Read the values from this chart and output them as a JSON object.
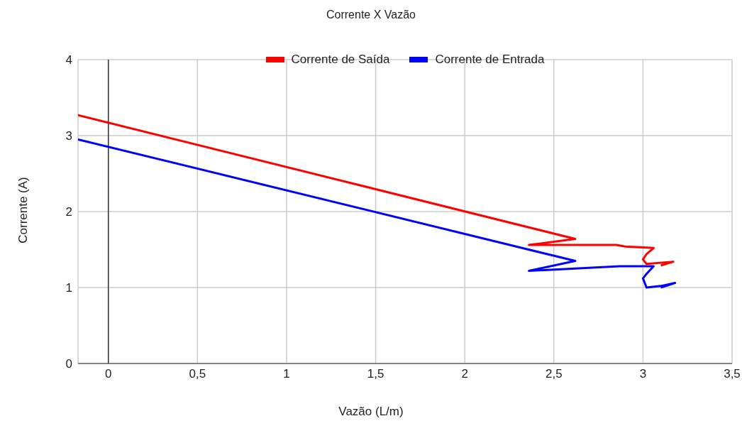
{
  "chart_data": {
    "type": "line",
    "title": "Corrente X Vazão",
    "xlabel": "Vazão (L/m)",
    "ylabel": "Corrente (A)",
    "xlim": [
      -0.17,
      3.5
    ],
    "xticks": [
      0,
      {
        "value": 0.5,
        "label": "0,5"
      },
      1,
      {
        "value": 1.5,
        "label": "1,5"
      },
      2,
      {
        "value": 2.5,
        "label": "2,5"
      },
      3,
      {
        "value": 3.5,
        "label": "3,5"
      }
    ],
    "ylim": [
      0,
      4
    ],
    "yticks": [
      0,
      1,
      2,
      3,
      4
    ],
    "grid": true,
    "legend": "top",
    "marker": "none",
    "line_style": "solid",
    "ref_lines": [
      {
        "axis": "x",
        "value": 0,
        "color": "#333333"
      }
    ],
    "series": [
      {
        "name": "Corrente de Saída",
        "color": "#ff0000",
        "x": [
          -0.17,
          2.62,
          2.36,
          2.85,
          2.9,
          3.06,
          3.02,
          3.0,
          3.02,
          3.17,
          3.1
        ],
        "values": [
          3.27,
          1.64,
          1.56,
          1.56,
          1.54,
          1.52,
          1.44,
          1.37,
          1.31,
          1.34,
          1.29
        ]
      },
      {
        "name": "Corrente de Entrada",
        "color": "#0000ff",
        "x": [
          -0.17,
          2.62,
          2.36,
          2.87,
          3.06,
          3.02,
          3.0,
          3.02,
          3.1,
          3.18,
          3.1
        ],
        "values": [
          2.95,
          1.35,
          1.22,
          1.28,
          1.28,
          1.18,
          1.12,
          1.0,
          1.02,
          1.06,
          1.0
        ]
      }
    ]
  }
}
